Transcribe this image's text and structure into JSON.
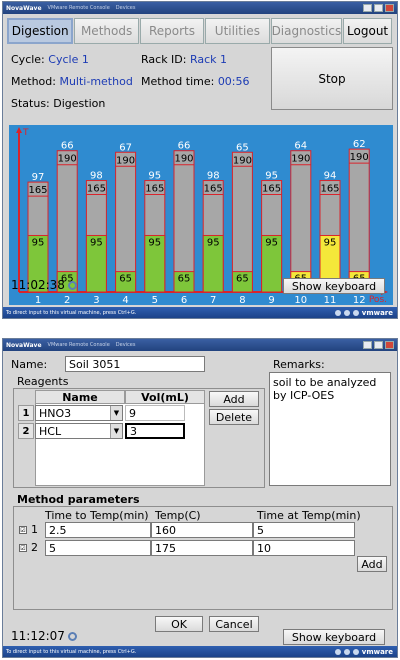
{
  "window1": {
    "title": "NovaWave",
    "subtitle": "VMware Remote Console",
    "menu": "Devices",
    "tabs": [
      "Digestion",
      "Methods",
      "Reports",
      "Utilities",
      "Diagnostics",
      "Logout"
    ],
    "active_tab": "Digestion",
    "cycle_label": "Cycle:",
    "cycle_value": "Cycle 1",
    "rack_label": "Rack ID:",
    "rack_value": "Rack 1",
    "method_label": "Method:",
    "method_value": "Multi-method",
    "method_time_label": "Method time:",
    "method_time_value": "00:56",
    "status_label": "Status:",
    "status_value": "Digestion",
    "stop_label": "Stop",
    "time": "11:02:38",
    "keyboard_label": "Show keyboard",
    "taskbar_text": "To direct input to this virtual machine, press Ctrl+G.",
    "vmware": "vmware"
  },
  "chart_data": {
    "type": "bar",
    "y_axis_label": "T",
    "x_axis_label": "Pos.",
    "categories": [
      "1",
      "2",
      "3",
      "4",
      "5",
      "6",
      "7",
      "8",
      "9",
      "10",
      "11",
      "12"
    ],
    "top_values": [
      97,
      66,
      98,
      67,
      95,
      66,
      98,
      65,
      95,
      64,
      94,
      62
    ],
    "setpoint_values": [
      165,
      190,
      165,
      190,
      165,
      190,
      165,
      190,
      165,
      190,
      165,
      190
    ],
    "lower_values": [
      95,
      65,
      95,
      65,
      95,
      65,
      95,
      65,
      95,
      65,
      95,
      65
    ],
    "colors": [
      "#7ec63a",
      "#7ec63a",
      "#7ec63a",
      "#7ec63a",
      "#7ec63a",
      "#7ec63a",
      "#7ec63a",
      "#7ec63a",
      "#7ec63a",
      "#f4e83a",
      "#f4e83a",
      "#f4e83a"
    ],
    "top_heights": [
      0.7,
      0.9,
      0.71,
      0.89,
      0.71,
      0.9,
      0.71,
      0.89,
      0.71,
      0.9,
      0.71,
      0.91
    ],
    "fill_fractions": [
      0.36,
      0.13,
      0.36,
      0.13,
      0.36,
      0.13,
      0.36,
      0.13,
      0.36,
      0.13,
      0.36,
      0.13
    ]
  },
  "window2": {
    "title": "NovaWave",
    "subtitle": "VMware Remote Console",
    "menu": "Devices",
    "name_label": "Name:",
    "name_value": "Soil 3051",
    "remarks_label": "Remarks:",
    "remarks_value": "soil to be analyzed by ICP-OES",
    "reagents_label": "Reagents",
    "col_name": "Name",
    "col_vol": "Vol(mL)",
    "reagents": [
      {
        "num": "1",
        "name": "HNO3",
        "vol": "9"
      },
      {
        "num": "2",
        "name": "HCL",
        "vol": "3"
      }
    ],
    "add_label": "Add",
    "delete_label": "Delete",
    "method_params_label": "Method parameters",
    "col_time_to_temp": "Time to Temp(min)",
    "col_temp": "Temp(C)",
    "col_time_at_temp": "Time at Temp(min)",
    "steps": [
      {
        "num": "1",
        "time_to_temp": "2.5",
        "temp": "160",
        "time_at_temp": "5"
      },
      {
        "num": "2",
        "time_to_temp": "5",
        "temp": "175",
        "time_at_temp": "10"
      }
    ],
    "add2_label": "Add",
    "ok_label": "OK",
    "cancel_label": "Cancel",
    "time": "11:12:07",
    "keyboard_label": "Show keyboard",
    "taskbar_text": "To direct input to this virtual machine, press Ctrl+G.",
    "vmware": "vmware"
  }
}
